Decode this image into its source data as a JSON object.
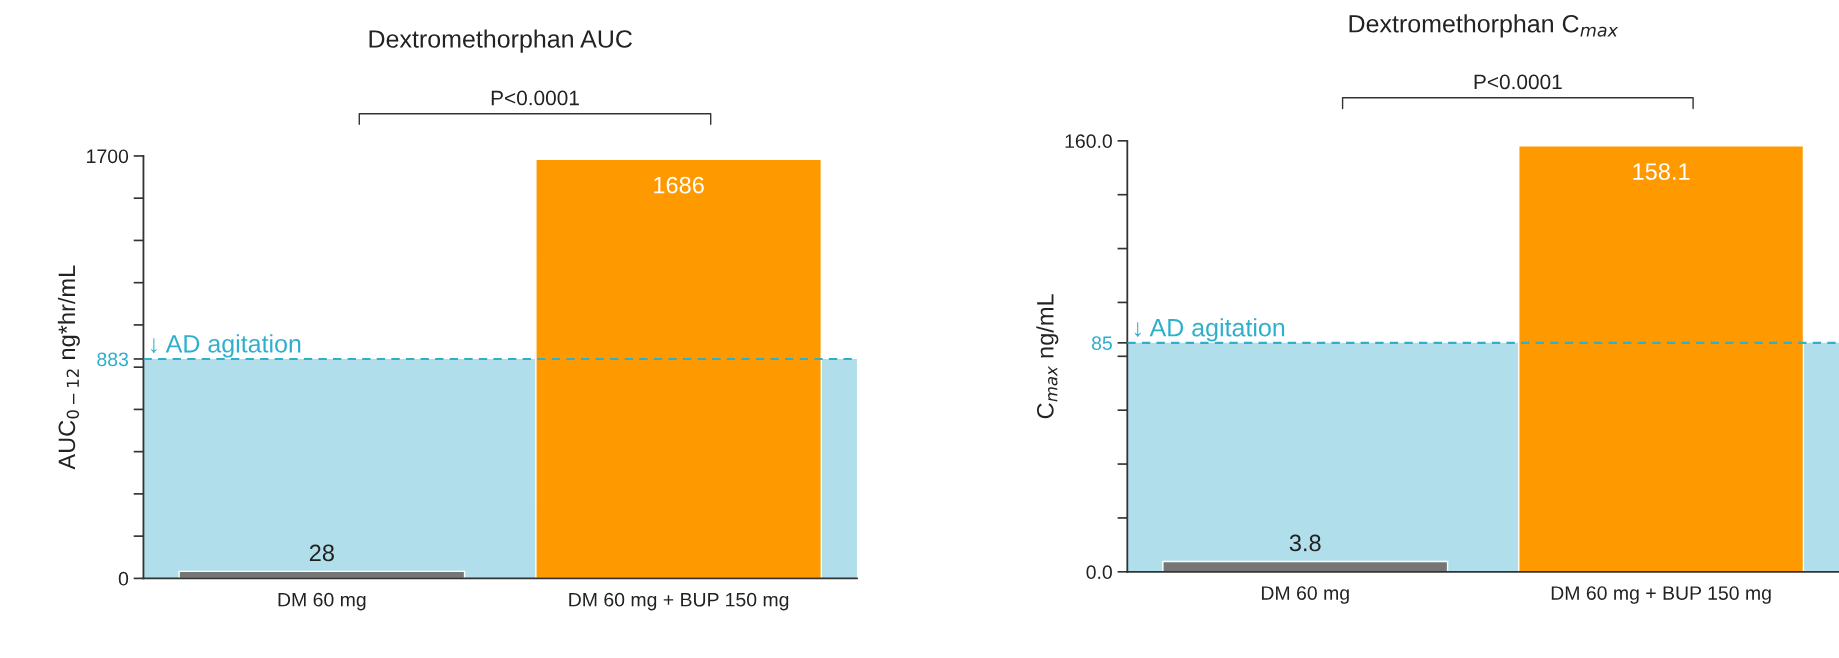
{
  "chart_data": [
    {
      "type": "bar",
      "title": "Dextromethorphan AUC",
      "ylabel": "AUC$_{0−12}$ ng*hr/mL",
      "categories": [
        "DM 60 mg",
        "DM 60 mg + BUP 150 mg"
      ],
      "values": [
        28,
        1686
      ],
      "colors": [
        "#767676",
        "#ff9900"
      ],
      "data_labels": true,
      "ylim": [
        0,
        1700
      ],
      "yticks": [
        {
          "value": 0,
          "label": "0"
        },
        {
          "value": 170,
          "label": null
        },
        {
          "value": 340,
          "label": null
        },
        {
          "value": 510,
          "label": null
        },
        {
          "value": 680,
          "label": null
        },
        {
          "value": 850,
          "label": null
        },
        {
          "value": 883,
          "label": "883"
        },
        {
          "value": 1020,
          "label": null
        },
        {
          "value": 1190,
          "label": null
        },
        {
          "value": 1360,
          "label": null
        },
        {
          "value": 1530,
          "label": null
        },
        {
          "value": 1700,
          "label": "1700"
        }
      ],
      "ref_lines": [
        {
          "axis": "y",
          "value": 883,
          "label": "↓ AD agitation",
          "color": "#2eafcc",
          "line_style": "dashed"
        }
      ],
      "bands": [
        {
          "axis": "y",
          "from": 0,
          "to": 883,
          "color": "#b0dfeb"
        }
      ],
      "annotations": [
        "P<0.0001"
      ],
      "grid": false,
      "legend": false
    },
    {
      "type": "bar",
      "title": "Dextromethorphan C$_{max}$",
      "ylabel": "C$_{max}$ ng/mL",
      "categories": [
        "DM 60 mg",
        "DM 60 mg + BUP 150 mg"
      ],
      "values": [
        3.8,
        158.1
      ],
      "colors": [
        "#767676",
        "#ff9900"
      ],
      "data_labels": true,
      "ylim": [
        0,
        160
      ],
      "yticks": [
        {
          "value": 0,
          "label": "0.0"
        },
        {
          "value": 20,
          "label": null
        },
        {
          "value": 40,
          "label": null
        },
        {
          "value": 60,
          "label": null
        },
        {
          "value": 80,
          "label": null
        },
        {
          "value": 85,
          "label": "85"
        },
        {
          "value": 100,
          "label": null
        },
        {
          "value": 120,
          "label": null
        },
        {
          "value": 140,
          "label": null
        },
        {
          "value": 160,
          "label": "160.0"
        }
      ],
      "ref_lines": [
        {
          "axis": "y",
          "value": 85,
          "label": "↓ AD agitation",
          "color": "#2eafcc",
          "line_style": "dashed"
        }
      ],
      "bands": [
        {
          "axis": "y",
          "from": 0,
          "to": 85,
          "color": "#b0dfeb"
        }
      ],
      "annotations": [
        "P<0.0001"
      ],
      "grid": false,
      "legend": false
    }
  ]
}
